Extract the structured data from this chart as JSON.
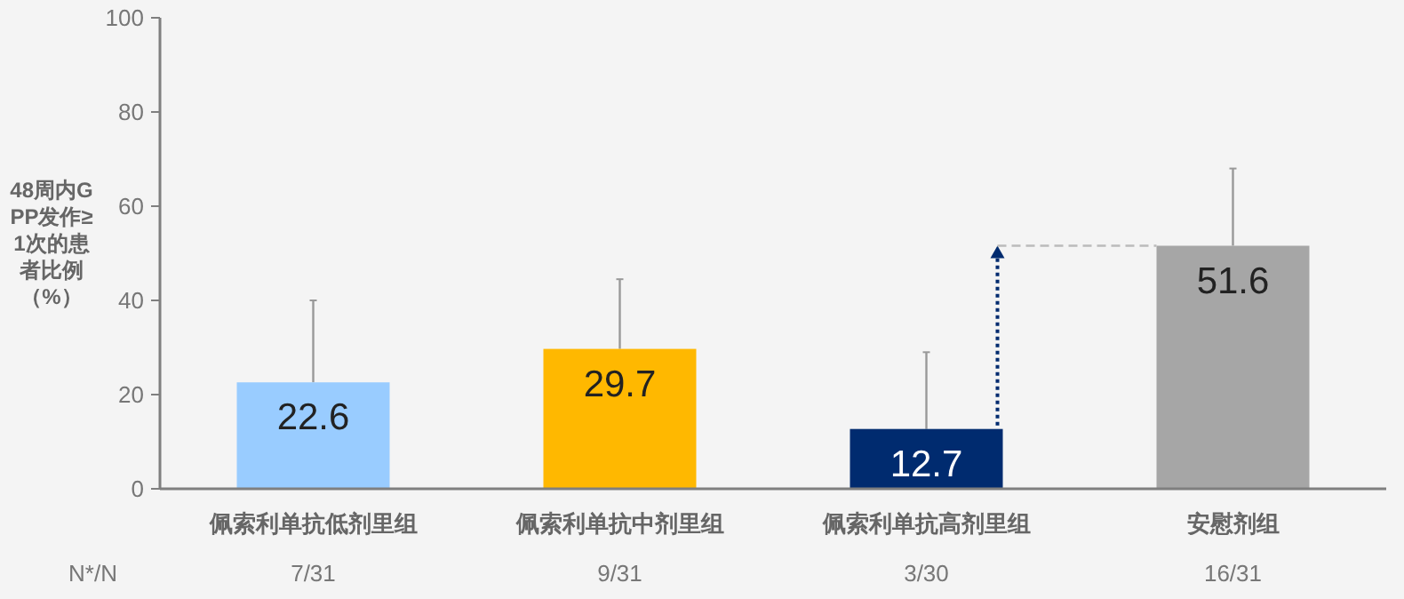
{
  "chart_data": {
    "type": "bar",
    "ylabel": "48周内GPP发作≥1次的患者比例（%）",
    "categories": [
      "佩索利单抗低剂里组",
      "佩索利单抗中剂里组",
      "佩索利单抗高剂里组",
      "安慰剂组"
    ],
    "values": [
      22.6,
      29.7,
      12.7,
      51.6
    ],
    "colors": [
      "#99ccff",
      "#ffb800",
      "#002b6f",
      "#a6a6a6"
    ],
    "errors": [
      [
        22.6,
        40
      ],
      [
        29.7,
        44.5
      ],
      [
        12.7,
        29
      ],
      [
        51.6,
        68
      ]
    ],
    "data_labels": true,
    "ylim": [
      0,
      100
    ],
    "yticks": [
      0,
      20,
      40,
      60,
      80,
      100
    ],
    "grid": false,
    "annotations": [
      "N*/N",
      "7/31",
      "9/31",
      "3/30",
      "16/31"
    ]
  }
}
